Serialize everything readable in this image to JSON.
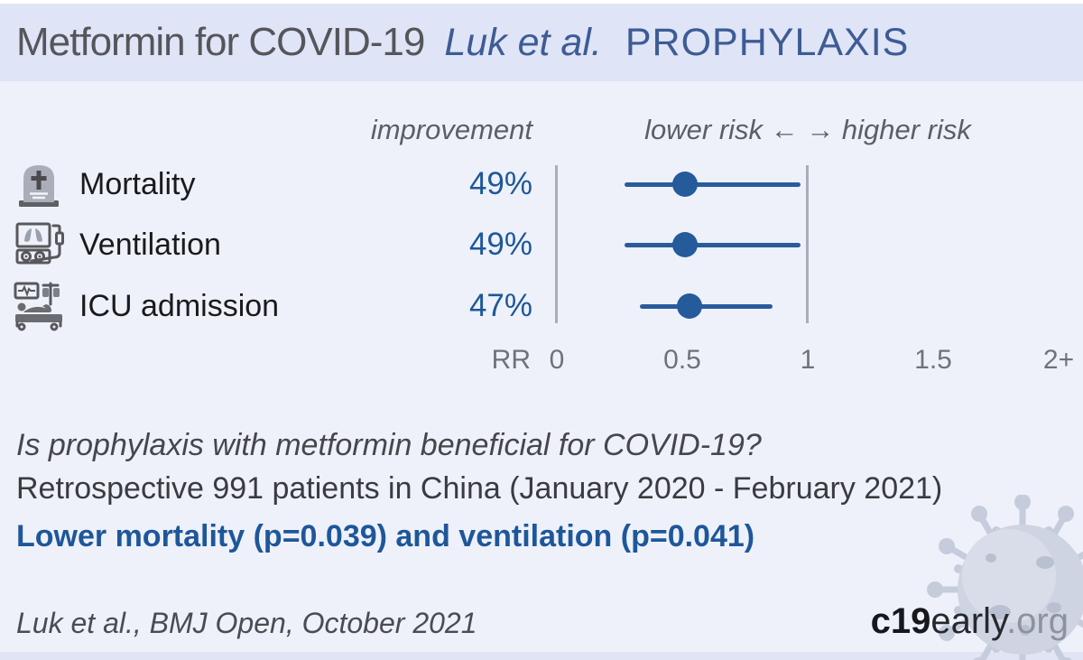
{
  "header": {
    "title": "Metformin for COVID-19",
    "study": "Luk et al.",
    "stage": "PROPHYLAXIS"
  },
  "chart_data": {
    "type": "scatter",
    "subtype": "forest-plot",
    "value_header": "improvement",
    "direction_header": "lower risk ←  → higher risk",
    "x_axis_label": "RR",
    "x_range": [
      0,
      2
    ],
    "reference_lines": [
      0,
      1
    ],
    "x_ticks": [
      {
        "label": "0",
        "rr": 0
      },
      {
        "label": "0.5",
        "rr": 0.5
      },
      {
        "label": "1",
        "rr": 1
      },
      {
        "label": "1.5",
        "rr": 1.5
      },
      {
        "label": "2+",
        "rr": 2
      }
    ],
    "rows": [
      {
        "label": "Mortality",
        "icon": "tombstone-icon",
        "improvement": "49%",
        "rr": 0.51,
        "ci_low": 0.27,
        "ci_high": 0.97
      },
      {
        "label": "Ventilation",
        "icon": "ventilator-icon",
        "improvement": "49%",
        "rr": 0.51,
        "ci_low": 0.27,
        "ci_high": 0.97
      },
      {
        "label": "ICU admission",
        "icon": "icu-bed-icon",
        "improvement": "47%",
        "rr": 0.53,
        "ci_low": 0.33,
        "ci_high": 0.86
      }
    ]
  },
  "summary": {
    "question": "Is prophylaxis with metformin beneficial for COVID-19?",
    "cohort": "Retrospective 991 patients in China (January 2020 - February 2021)",
    "finding": "Lower mortality (p=0.039) and ventilation (p=0.041)"
  },
  "footer": {
    "citation": "Luk et al., BMJ Open, October 2021",
    "site": {
      "bold": "c19",
      "mid": "early",
      "suffix": ".org"
    }
  },
  "icons": [
    "tombstone-icon",
    "ventilator-icon",
    "icu-bed-icon",
    "virus-icon"
  ],
  "colors": {
    "accent_blue": "#1e5799",
    "forest_blue": "#2a5c9c",
    "title_blue": "#3d5c94",
    "header_bg": "#dfe4f7",
    "page_bg": "#eef1fa",
    "axis_gray": "#a9adb6",
    "text_gray": "#5b5e66",
    "icon_gray": "#58585c",
    "virus_gray": "#ccd2e0"
  }
}
